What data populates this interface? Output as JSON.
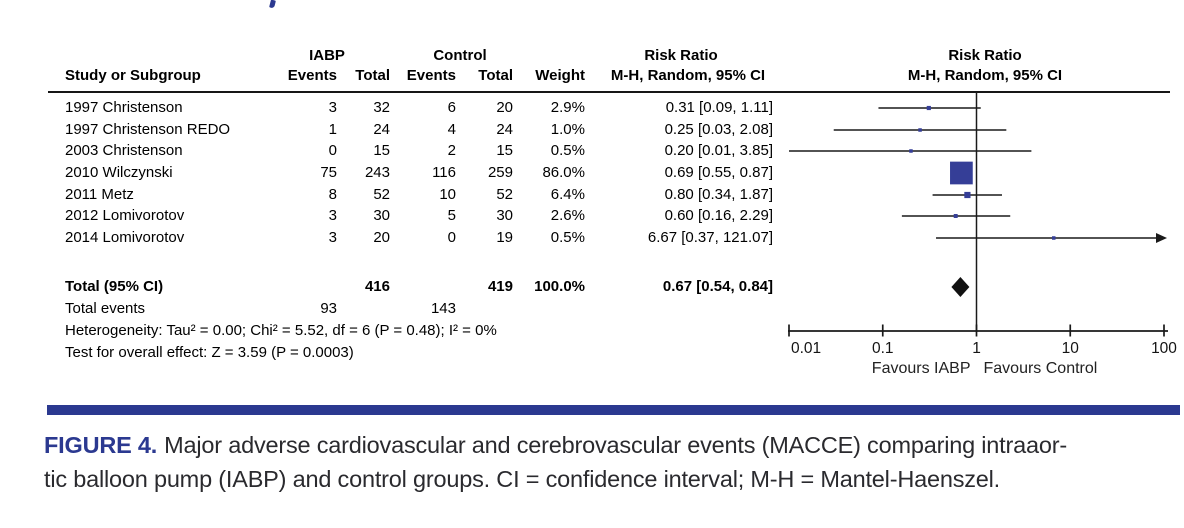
{
  "table": {
    "group_headers": {
      "iabp": "IABP",
      "control": "Control",
      "risk_ratio": "Risk Ratio"
    },
    "col_headers": {
      "study": "Study or Subgroup",
      "iabp_events": "Events",
      "iabp_total": "Total",
      "control_events": "Events",
      "control_total": "Total",
      "weight": "Weight",
      "mh_random": "M-H, Random, 95% CI"
    },
    "rows": [
      {
        "study": "1997 Christenson",
        "iabp_events": "3",
        "iabp_total": "32",
        "control_events": "6",
        "control_total": "20",
        "weight": "2.9%",
        "rr_ci": "0.31 [0.09, 1.11]"
      },
      {
        "study": "1997 Christenson REDO",
        "iabp_events": "1",
        "iabp_total": "24",
        "control_events": "4",
        "control_total": "24",
        "weight": "1.0%",
        "rr_ci": "0.25 [0.03, 2.08]"
      },
      {
        "study": "2003 Christenson",
        "iabp_events": "0",
        "iabp_total": "15",
        "control_events": "2",
        "control_total": "15",
        "weight": "0.5%",
        "rr_ci": "0.20 [0.01, 3.85]"
      },
      {
        "study": "2010 Wilczynski",
        "iabp_events": "75",
        "iabp_total": "243",
        "control_events": "116",
        "control_total": "259",
        "weight": "86.0%",
        "rr_ci": "0.69 [0.55, 0.87]"
      },
      {
        "study": "2011 Metz",
        "iabp_events": "8",
        "iabp_total": "52",
        "control_events": "10",
        "control_total": "52",
        "weight": "6.4%",
        "rr_ci": "0.80 [0.34, 1.87]"
      },
      {
        "study": "2012 Lomivorotov",
        "iabp_events": "3",
        "iabp_total": "30",
        "control_events": "5",
        "control_total": "30",
        "weight": "2.6%",
        "rr_ci": "0.60 [0.16, 2.29]"
      },
      {
        "study": "2014 Lomivorotov",
        "iabp_events": "3",
        "iabp_total": "20",
        "control_events": "0",
        "control_total": "19",
        "weight": "0.5%",
        "rr_ci": "6.67 [0.37, 121.07]"
      }
    ],
    "total_row": {
      "label": "Total (95% CI)",
      "iabp_total": "416",
      "control_total": "419",
      "weight": "100.0%",
      "rr_ci": "0.67 [0.54, 0.84]"
    },
    "total_events": {
      "label": "Total events",
      "iabp": "93",
      "control": "143"
    },
    "heterogeneity": "Heterogeneity: Tau² = 0.00; Chi² = 5.52, df = 6 (P = 0.48); I² = 0%",
    "overall_effect": "Test for overall effect: Z = 3.59 (P = 0.0003)"
  },
  "chart_data": {
    "type": "forest",
    "title": "Risk Ratio",
    "subtitle": "M-H, Random, 95% CI",
    "x_scale": "log10",
    "x_range": [
      0.01,
      100
    ],
    "x_ticks": [
      "0.01",
      "0.1",
      "1",
      "10",
      "100"
    ],
    "favours_left": "Favours IABP",
    "favours_right": "Favours Control",
    "marker_color": "#353e97",
    "diamond_color": "#111111",
    "line_color": "#1a1a1a",
    "studies": [
      {
        "name": "1997 Christenson",
        "rr": 0.31,
        "ci_low": 0.09,
        "ci_high": 1.11,
        "weight_pct": 2.9
      },
      {
        "name": "1997 Christenson REDO",
        "rr": 0.25,
        "ci_low": 0.03,
        "ci_high": 2.08,
        "weight_pct": 1.0
      },
      {
        "name": "2003 Christenson",
        "rr": 0.2,
        "ci_low": 0.01,
        "ci_high": 3.85,
        "weight_pct": 0.5
      },
      {
        "name": "2010 Wilczynski",
        "rr": 0.69,
        "ci_low": 0.55,
        "ci_high": 0.87,
        "weight_pct": 86.0
      },
      {
        "name": "2011 Metz",
        "rr": 0.8,
        "ci_low": 0.34,
        "ci_high": 1.87,
        "weight_pct": 6.4
      },
      {
        "name": "2012 Lomivorotov",
        "rr": 0.6,
        "ci_low": 0.16,
        "ci_high": 2.29,
        "weight_pct": 2.6
      },
      {
        "name": "2014 Lomivorotov",
        "rr": 6.67,
        "ci_low": 0.37,
        "ci_high": 121.07,
        "weight_pct": 0.5
      }
    ],
    "pooled": {
      "label": "Total (95% CI)",
      "rr": 0.67,
      "ci_low": 0.54,
      "ci_high": 0.84
    }
  },
  "caption": {
    "label": "FIGURE 4.",
    "line1": "Major adverse cardiovascular and cerebrovascular events (MACCE) comparing intraaor-",
    "line2": "tic balloon pump (IABP) and control groups. CI = confidence interval; M-H = Mantel-Haenszel.",
    "accent_color": "#2b3990"
  }
}
